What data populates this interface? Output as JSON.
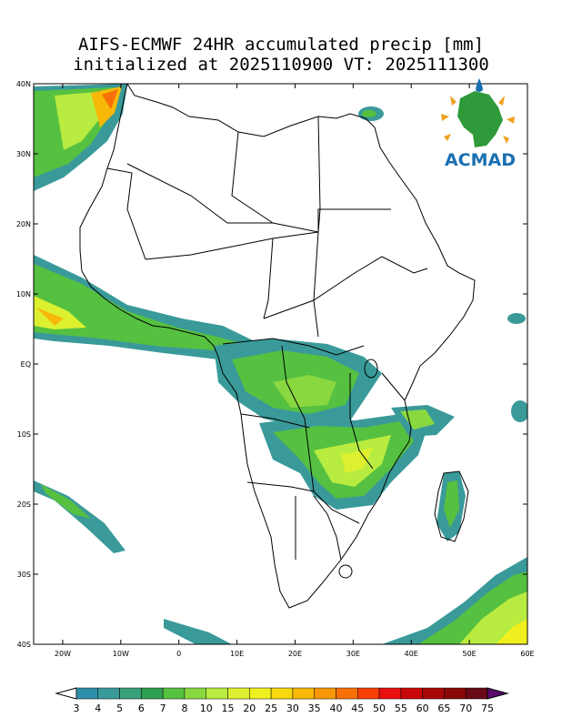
{
  "title": {
    "line1": "AIFS-ECMWF 24HR accumulated precip [mm]",
    "line2": "initialized at 2025110900 VT: 2025111300"
  },
  "map": {
    "lon_range": [
      -25,
      60
    ],
    "lat_range": [
      -40,
      40
    ],
    "lon_ticks": [
      {
        "value": -20,
        "label": "20W"
      },
      {
        "value": -10,
        "label": "10W"
      },
      {
        "value": 0,
        "label": "0"
      },
      {
        "value": 10,
        "label": "10E"
      },
      {
        "value": 20,
        "label": "20E"
      },
      {
        "value": 30,
        "label": "30E"
      },
      {
        "value": 40,
        "label": "40E"
      },
      {
        "value": 50,
        "label": "50E"
      },
      {
        "value": 60,
        "label": "60E"
      }
    ],
    "lat_ticks": [
      {
        "value": 40,
        "label": "40N"
      },
      {
        "value": 30,
        "label": "30N"
      },
      {
        "value": 20,
        "label": "20N"
      },
      {
        "value": 10,
        "label": "10N"
      },
      {
        "value": 0,
        "label": "EQ"
      },
      {
        "value": -10,
        "label": "10S"
      },
      {
        "value": -20,
        "label": "20S"
      },
      {
        "value": -30,
        "label": "30S"
      },
      {
        "value": -40,
        "label": "40S"
      }
    ]
  },
  "logo": {
    "text": "ACMAD"
  },
  "colorbar": {
    "labels": [
      "3",
      "4",
      "5",
      "6",
      "7",
      "8",
      "10",
      "15",
      "20",
      "25",
      "30",
      "35",
      "40",
      "45",
      "50",
      "55",
      "60",
      "65",
      "70",
      "75"
    ],
    "colors": [
      "#2f8fa8",
      "#3a9a9a",
      "#3aa07a",
      "#2ea050",
      "#56c040",
      "#8ad840",
      "#b8ec40",
      "#dcf030",
      "#f0f020",
      "#f8d810",
      "#f8b808",
      "#f89808",
      "#f87008",
      "#f84008",
      "#e81010",
      "#c80808",
      "#a80808",
      "#880808",
      "#680a18",
      "#4a0828"
    ],
    "under_color": "#ffffff",
    "over_color": "#5a0a6a"
  }
}
